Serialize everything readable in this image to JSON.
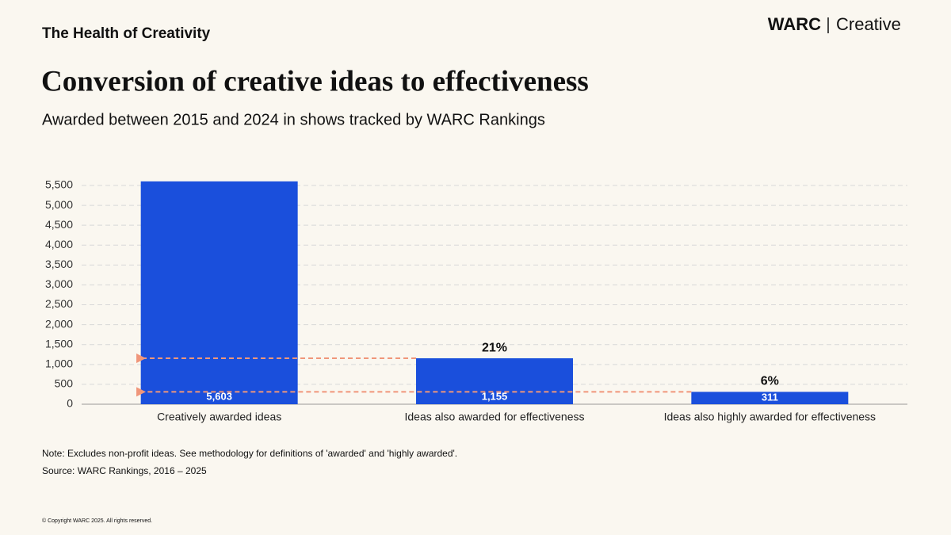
{
  "header": {
    "section": "The Health of Creativity",
    "brand": "WARC",
    "product": "Creative"
  },
  "chart_data": {
    "type": "bar",
    "title": "Conversion of creative ideas to effectiveness",
    "subtitle": "Awarded between 2015 and 2024 in shows tracked by WARC Rankings",
    "categories": [
      "Creatively awarded ideas",
      "Ideas also awarded for effectiveness",
      "Ideas also highly awarded for effectiveness"
    ],
    "values": [
      5603,
      1155,
      311
    ],
    "value_labels": [
      "5,603",
      "1,155",
      "311"
    ],
    "annotations": [
      null,
      "21%",
      "6%"
    ],
    "color": "#1a4fdc",
    "ylim": [
      0,
      5500
    ],
    "yticks": [
      0,
      500,
      {
        "value": 1000,
        "label": "1,000"
      },
      {
        "value": 1500,
        "label": "1,500"
      },
      {
        "value": 2000,
        "label": "2,000"
      },
      {
        "value": 2500,
        "label": "2,500"
      },
      {
        "value": 3000,
        "label": "3,000"
      },
      {
        "value": 3500,
        "label": "3,500"
      },
      {
        "value": 4000,
        "label": "4,000"
      },
      {
        "value": 4500,
        "label": "4,500"
      },
      {
        "value": 5000,
        "label": "5,000"
      },
      {
        "value": 5500,
        "label": "5,500"
      }
    ],
    "grid": true
  },
  "footer": {
    "note": "Note: Excludes non-profit ideas. See methodology for definitions of 'awarded' and 'highly awarded'.",
    "source": "Source: WARC Rankings, 2016 – 2025",
    "copyright": "© Copyright WARC 2025. All rights reserved."
  }
}
